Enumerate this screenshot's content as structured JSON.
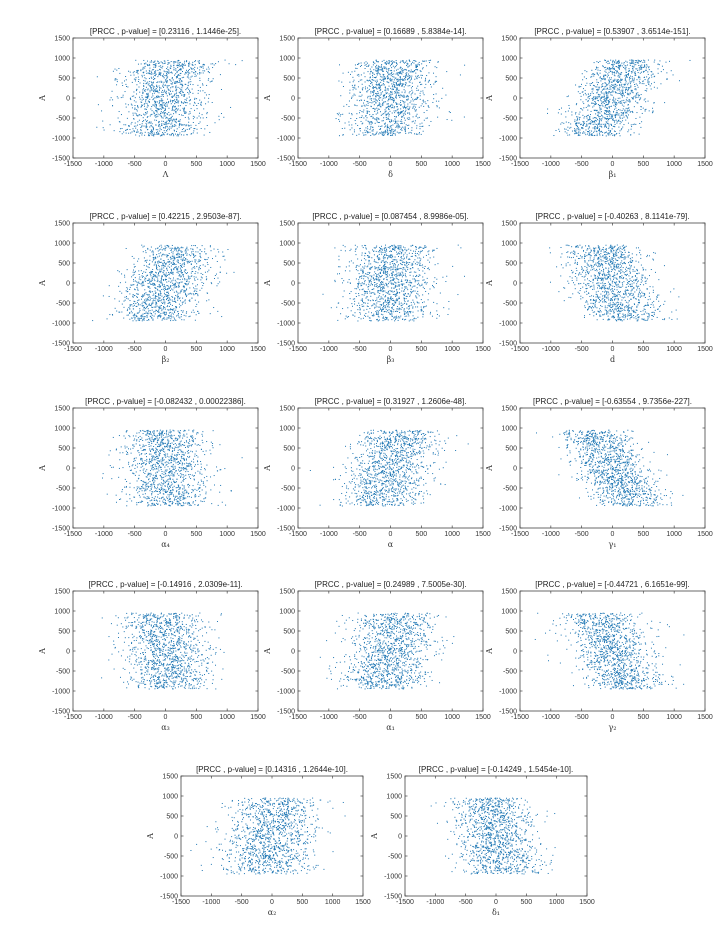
{
  "figure": {
    "point_color": "#1f77b4",
    "note": "",
    "panels_count": 14
  },
  "chart_data": [
    {
      "type": "scatter",
      "title": "[PRCC , p-value] = [0.23116 , 1.1446e-25].",
      "xlabel": "Λ",
      "ylabel": "A",
      "xlim": [
        -1500,
        1500
      ],
      "ylim": [
        -1500,
        1500
      ],
      "xticks": [
        -1500,
        -1000,
        -500,
        0,
        500,
        1000,
        1500
      ],
      "yticks": [
        -1500,
        -1000,
        -500,
        0,
        500,
        1000,
        1500
      ],
      "prcc": 0.23116,
      "p_value": "1.1446e-25",
      "n_points": 1200,
      "x_spread": 360,
      "grid": false
    },
    {
      "type": "scatter",
      "title": "[PRCC , p-value] = [0.16689 , 5.8384e-14].",
      "xlabel": "δ",
      "ylabel": "A",
      "xlim": [
        -1500,
        1500
      ],
      "ylim": [
        -1500,
        1500
      ],
      "xticks": [
        -1500,
        -1000,
        -500,
        0,
        500,
        1000,
        1500
      ],
      "yticks": [
        -1500,
        -1000,
        -500,
        0,
        500,
        1000,
        1500
      ],
      "prcc": 0.16689,
      "p_value": "5.8384e-14",
      "n_points": 1200,
      "x_spread": 340,
      "grid": false
    },
    {
      "type": "scatter",
      "title": "[PRCC , p-value] = [0.53907 , 3.6514e-151].",
      "xlabel": "β₁",
      "ylabel": "A",
      "xlim": [
        -1500,
        1500
      ],
      "ylim": [
        -1500,
        1500
      ],
      "xticks": [
        -1500,
        -1000,
        -500,
        0,
        500,
        1000,
        1500
      ],
      "yticks": [
        -1500,
        -1000,
        -500,
        0,
        500,
        1000,
        1500
      ],
      "prcc": 0.53907,
      "p_value": "3.6514e-151",
      "n_points": 1200,
      "x_spread": 300,
      "grid": false
    },
    {
      "type": "scatter",
      "title": "[PRCC , p-value] = [0.42215 , 2.9503e-87].",
      "xlabel": "β₂",
      "ylabel": "A",
      "xlim": [
        -1500,
        1500
      ],
      "ylim": [
        -1500,
        1500
      ],
      "xticks": [
        -1500,
        -1000,
        -500,
        0,
        500,
        1000,
        1500
      ],
      "yticks": [
        -1500,
        -1000,
        -500,
        0,
        500,
        1000,
        1500
      ],
      "prcc": 0.42215,
      "p_value": "2.9503e-87",
      "n_points": 1200,
      "x_spread": 330,
      "grid": false
    },
    {
      "type": "scatter",
      "title": "[PRCC , p-value] = [0.087454 , 8.9986e-05].",
      "xlabel": "β₃",
      "ylabel": "A",
      "xlim": [
        -1500,
        1500
      ],
      "ylim": [
        -1500,
        1500
      ],
      "xticks": [
        -1500,
        -1000,
        -500,
        0,
        500,
        1000,
        1500
      ],
      "yticks": [
        -1500,
        -1000,
        -500,
        0,
        500,
        1000,
        1500
      ],
      "prcc": 0.087454,
      "p_value": "8.9986e-05",
      "n_points": 1200,
      "x_spread": 350,
      "grid": false
    },
    {
      "type": "scatter",
      "title": "[PRCC , p-value] = [-0.40263 , 8.1141e-79].",
      "xlabel": "d",
      "ylabel": "A",
      "xlim": [
        -1500,
        1500
      ],
      "ylim": [
        -1500,
        1500
      ],
      "xticks": [
        -1500,
        -1000,
        -500,
        0,
        500,
        1000,
        1500
      ],
      "yticks": [
        -1500,
        -1000,
        -500,
        0,
        500,
        1000,
        1500
      ],
      "prcc": -0.40263,
      "p_value": "8.1141e-79",
      "n_points": 1200,
      "x_spread": 330,
      "grid": false
    },
    {
      "type": "scatter",
      "title": "[PRCC , p-value] = [-0.082432 , 0.00022386].",
      "xlabel": "α₄",
      "ylabel": "A",
      "xlim": [
        -1500,
        1500
      ],
      "ylim": [
        -1500,
        1500
      ],
      "xticks": [
        -1500,
        -1000,
        -500,
        0,
        500,
        1000,
        1500
      ],
      "yticks": [
        -1500,
        -1000,
        -500,
        0,
        500,
        1000,
        1500
      ],
      "prcc": -0.082432,
      "p_value": "0.00022386",
      "n_points": 1200,
      "x_spread": 340,
      "grid": false
    },
    {
      "type": "scatter",
      "title": "[PRCC , p-value] = [0.31927 , 1.2606e-48].",
      "xlabel": "α",
      "ylabel": "A",
      "xlim": [
        -1500,
        1500
      ],
      "ylim": [
        -1500,
        1500
      ],
      "xticks": [
        -1500,
        -1000,
        -500,
        0,
        500,
        1000,
        1500
      ],
      "yticks": [
        -1500,
        -1000,
        -500,
        0,
        500,
        1000,
        1500
      ],
      "prcc": 0.31927,
      "p_value": "1.2606e-48",
      "n_points": 1200,
      "x_spread": 340,
      "grid": false
    },
    {
      "type": "scatter",
      "title": "[PRCC , p-value] = [-0.63554 , 9.7356e-227].",
      "xlabel": "γ₁",
      "ylabel": "A",
      "xlim": [
        -1500,
        1500
      ],
      "ylim": [
        -1500,
        1500
      ],
      "xticks": [
        -1500,
        -1000,
        -500,
        0,
        500,
        1000,
        1500
      ],
      "yticks": [
        -1500,
        -1000,
        -500,
        0,
        500,
        1000,
        1500
      ],
      "prcc": -0.63554,
      "p_value": "9.7356e-227",
      "n_points": 1200,
      "x_spread": 300,
      "grid": false
    },
    {
      "type": "scatter",
      "title": "[PRCC , p-value] = [-0.14916 , 2.0309e-11].",
      "xlabel": "α₃",
      "ylabel": "A",
      "xlim": [
        -1500,
        1500
      ],
      "ylim": [
        -1500,
        1500
      ],
      "xticks": [
        -1500,
        -1000,
        -500,
        0,
        500,
        1000,
        1500
      ],
      "yticks": [
        -1500,
        -1000,
        -500,
        0,
        500,
        1000,
        1500
      ],
      "prcc": -0.14916,
      "p_value": "2.0309e-11",
      "n_points": 1200,
      "x_spread": 340,
      "grid": false
    },
    {
      "type": "scatter",
      "title": "[PRCC , p-value] = [0.24989 , 7.5005e-30].",
      "xlabel": "α₁",
      "ylabel": "A",
      "xlim": [
        -1500,
        1500
      ],
      "ylim": [
        -1500,
        1500
      ],
      "xticks": [
        -1500,
        -1000,
        -500,
        0,
        500,
        1000,
        1500
      ],
      "yticks": [
        -1500,
        -1000,
        -500,
        0,
        500,
        1000,
        1500
      ],
      "prcc": 0.24989,
      "p_value": "7.5005e-30",
      "n_points": 1200,
      "x_spread": 340,
      "grid": false
    },
    {
      "type": "scatter",
      "title": "[PRCC , p-value] = [-0.44721 , 6.1651e-99].",
      "xlabel": "γ₂",
      "ylabel": "A",
      "xlim": [
        -1500,
        1500
      ],
      "ylim": [
        -1500,
        1500
      ],
      "xticks": [
        -1500,
        -1000,
        -500,
        0,
        500,
        1000,
        1500
      ],
      "yticks": [
        -1500,
        -1000,
        -500,
        0,
        500,
        1000,
        1500
      ],
      "prcc": -0.44721,
      "p_value": "6.1651e-99",
      "n_points": 1200,
      "x_spread": 320,
      "grid": false
    },
    {
      "type": "scatter",
      "title": "[PRCC , p-value] = [0.14316 , 1.2644e-10].",
      "xlabel": "α₂",
      "ylabel": "A",
      "xlim": [
        -1500,
        1500
      ],
      "ylim": [
        -1500,
        1500
      ],
      "xticks": [
        -1500,
        -1000,
        -500,
        0,
        500,
        1000,
        1500
      ],
      "yticks": [
        -1500,
        -1000,
        -500,
        0,
        500,
        1000,
        1500
      ],
      "prcc": 0.14316,
      "p_value": "1.2644e-10",
      "n_points": 1200,
      "x_spread": 370,
      "grid": false
    },
    {
      "type": "scatter",
      "title": "[PRCC , p-value] = [-0.14249 , 1.5454e-10].",
      "xlabel": "δ₁",
      "ylabel": "A",
      "xlim": [
        -1500,
        1500
      ],
      "ylim": [
        -1500,
        1500
      ],
      "xticks": [
        -1500,
        -1000,
        -500,
        0,
        500,
        1000,
        1500
      ],
      "yticks": [
        -1500,
        -1000,
        -500,
        0,
        500,
        1000,
        1500
      ],
      "prcc": -0.14249,
      "p_value": "1.5454e-10",
      "n_points": 1200,
      "x_spread": 340,
      "grid": false
    }
  ]
}
